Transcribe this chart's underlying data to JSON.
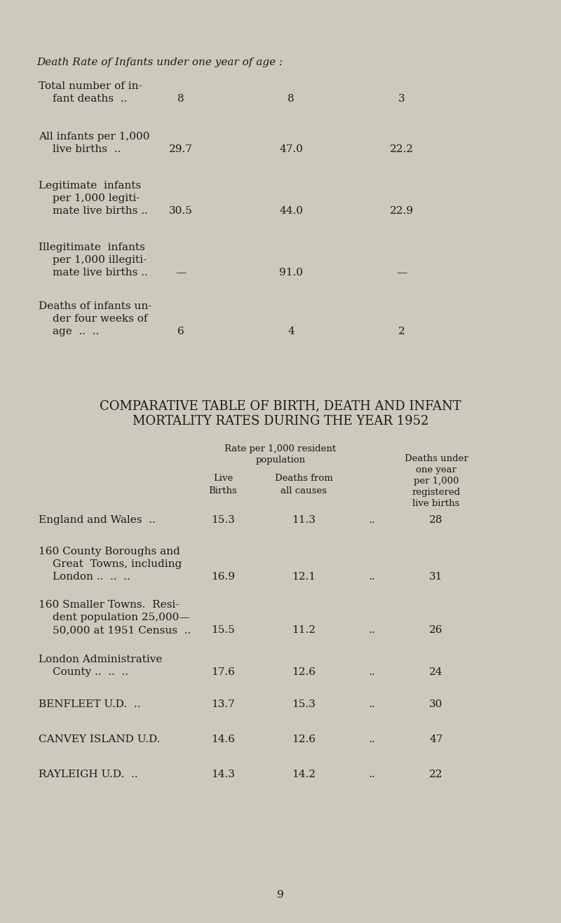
{
  "bg_color": "#cdc9bc",
  "text_color": "#1a1a1a",
  "page_number": "9",
  "section1_title": "Death Rate of Infants under one year of age :",
  "section1_rows": [
    {
      "label_lines": [
        "Total number of in-",
        "fant deaths  .."
      ],
      "col1": "8",
      "col2": "8",
      "col3": "3"
    },
    {
      "label_lines": [
        "All infants per 1,000",
        "live births  .."
      ],
      "col1": "29.7",
      "col2": "47.0",
      "col3": "22.2"
    },
    {
      "label_lines": [
        "Legitimate  infants",
        "per 1,000 legiti-",
        "mate live births .."
      ],
      "col1": "30.5",
      "col2": "44.0",
      "col3": "22.9"
    },
    {
      "label_lines": [
        "Illegitimate  infants",
        "per 1,000 illegiti-",
        "mate live births .."
      ],
      "col1": "—",
      "col2": "91.0",
      "col3": "—"
    },
    {
      "label_lines": [
        "Deaths of infants un-",
        "der four weeks of",
        "age  ..  .."
      ],
      "col1": "6",
      "col2": "4",
      "col3": "2"
    }
  ],
  "section2_title_line1": "COMPARATIVE TABLE OF BIRTH, DEATH AND INFANT",
  "section2_title_line2": "MORTALITY RATES DURING THE YEAR 1952",
  "section2_rows": [
    {
      "label_lines": [
        "England and Wales  .."
      ],
      "live_births": "15.3",
      "deaths_from": "11.3",
      "dots": "..",
      "deaths_under": "28"
    },
    {
      "label_lines": [
        "160 County Boroughs and",
        "Great  Towns, including",
        "London ..  ..  .."
      ],
      "live_births": "16.9",
      "deaths_from": "12.1",
      "dots": "..",
      "deaths_under": "31"
    },
    {
      "label_lines": [
        "160 Smaller Towns.  Resi-",
        "dent population 25,000—",
        "50,000 at 1951 Census  .."
      ],
      "live_births": "15.5",
      "deaths_from": "11.2",
      "dots": "..",
      "deaths_under": "26"
    },
    {
      "label_lines": [
        "London Administrative",
        "County ..  ..  .."
      ],
      "live_births": "17.6",
      "deaths_from": "12.6",
      "dots": "..",
      "deaths_under": "24"
    },
    {
      "label_lines": [
        "BENFLEET U.D.  .."
      ],
      "live_births": "13.7",
      "deaths_from": "15.3",
      "dots": "..",
      "deaths_under": "30"
    },
    {
      "label_lines": [
        "CANVEY ISLAND U.D."
      ],
      "live_births": "14.6",
      "deaths_from": "12.6",
      "dots": "..",
      "deaths_under": "47"
    },
    {
      "label_lines": [
        "RAYLEIGH U.D.  .."
      ],
      "live_births": "14.3",
      "deaths_from": "14.2",
      "dots": "..",
      "deaths_under": "22"
    }
  ],
  "fig_width": 8.0,
  "fig_height": 13.17,
  "dpi": 100
}
